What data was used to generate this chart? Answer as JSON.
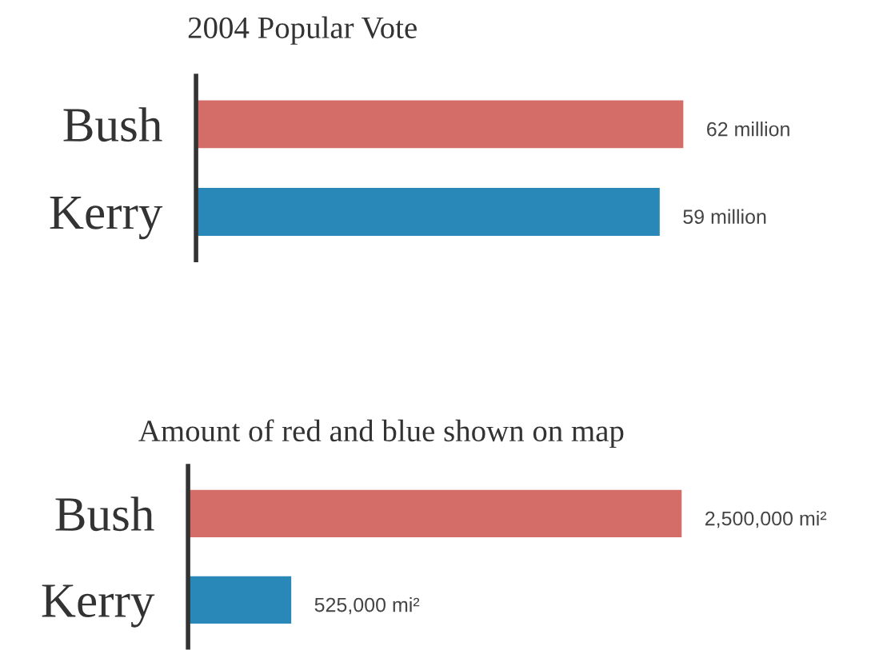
{
  "chart_data": [
    {
      "type": "bar",
      "orientation": "horizontal",
      "title": "2004 Popular Vote",
      "categories": [
        "Bush",
        "Kerry"
      ],
      "values": [
        62,
        59
      ],
      "colors": [
        "#d46c67",
        "#2a88b8"
      ],
      "value_labels": [
        "62 million",
        "59 million"
      ],
      "tick_labels": "y"
    },
    {
      "type": "bar",
      "orientation": "horizontal",
      "title": "Amount of red and blue shown on map",
      "categories": [
        "Bush",
        "Kerry"
      ],
      "values": [
        2500000,
        525000
      ],
      "colors": [
        "#d46c67",
        "#2a88b8"
      ],
      "value_labels": [
        "2,500,000 mi²",
        "525,000 mi²"
      ],
      "tick_labels": "y"
    }
  ]
}
